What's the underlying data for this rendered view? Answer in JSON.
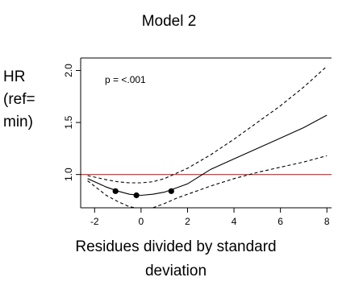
{
  "chart_data": {
    "type": "line",
    "title": "Model 2",
    "xlabel_lines": [
      "Residues divided by standard",
      "deviation"
    ],
    "ylabel_lines": [
      "HR",
      "(ref=",
      "min)"
    ],
    "annotation": "p = <.001",
    "xlim": [
      -2.6,
      8.2
    ],
    "ylim": [
      0.68,
      2.12
    ],
    "x_ticks": [
      -2,
      0,
      2,
      4,
      6,
      8
    ],
    "x_tick_labels": [
      "-2",
      "0",
      "2",
      "4",
      "6",
      "8"
    ],
    "y_ticks": [
      1.0,
      1.5,
      2.0
    ],
    "y_tick_labels": [
      "1.0",
      "1.5",
      "2.0"
    ],
    "reference_line": {
      "y": 1.0,
      "color": "#e0201b"
    },
    "series": [
      {
        "role": "estimate",
        "style": "solid",
        "x": [
          -2.3,
          -1.5,
          -1.0,
          -0.5,
          0.0,
          0.5,
          1.0,
          1.5,
          2.0,
          3.0,
          4.0,
          5.0,
          6.0,
          7.0,
          8.0
        ],
        "y": [
          0.96,
          0.88,
          0.84,
          0.81,
          0.8,
          0.81,
          0.83,
          0.87,
          0.91,
          1.05,
          1.15,
          1.25,
          1.35,
          1.45,
          1.57
        ]
      },
      {
        "role": "upper_ci",
        "style": "dashed",
        "x": [
          -2.3,
          -1.5,
          -1.0,
          -0.5,
          0.0,
          0.5,
          1.0,
          2.0,
          3.0,
          4.0,
          5.0,
          6.0,
          7.0,
          8.0
        ],
        "y": [
          0.99,
          0.95,
          0.93,
          0.92,
          0.92,
          0.93,
          0.96,
          1.06,
          1.19,
          1.34,
          1.5,
          1.66,
          1.84,
          2.04
        ]
      },
      {
        "role": "lower_ci",
        "style": "dashed",
        "x": [
          -2.3,
          -1.5,
          -1.0,
          -0.5,
          0.0,
          0.5,
          1.0,
          1.5,
          2.0,
          3.0,
          4.0,
          5.0,
          6.0,
          7.0,
          8.0
        ],
        "y": [
          0.94,
          0.8,
          0.74,
          0.69,
          0.67,
          0.68,
          0.72,
          0.77,
          0.81,
          0.89,
          0.96,
          1.02,
          1.07,
          1.12,
          1.18
        ]
      }
    ],
    "points": {
      "x": [
        -1.1,
        -0.2,
        1.3
      ],
      "y": [
        0.84,
        0.8,
        0.84
      ]
    }
  }
}
